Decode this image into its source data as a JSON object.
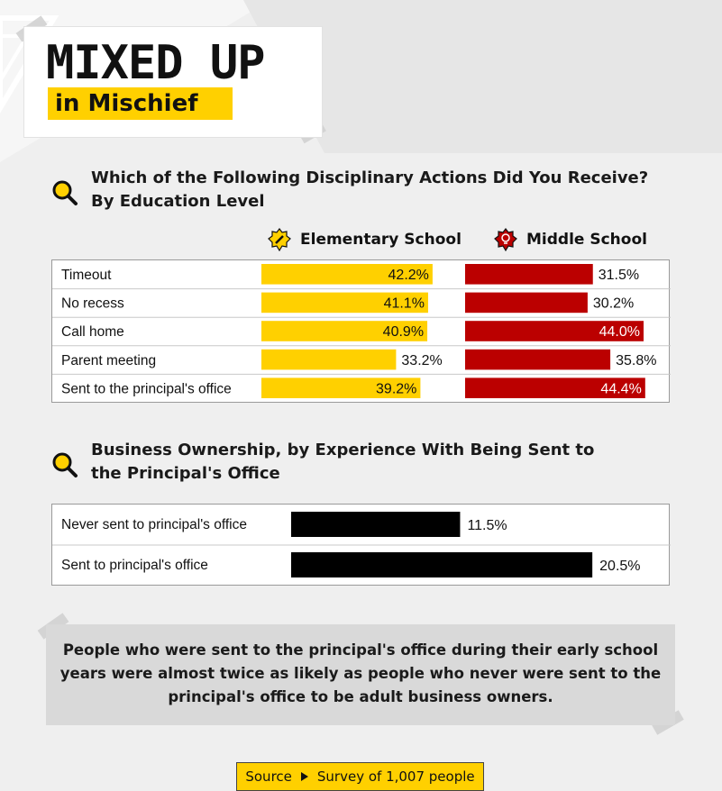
{
  "title": {
    "main": "MIXED UP",
    "sub": "in Mischief"
  },
  "section1": {
    "title_line1": "Which of the Following Disciplinary Actions Did You Receive?",
    "title_line2": "By Education Level",
    "legend": [
      {
        "label": "Elementary School",
        "icon": "pencil-badge-icon",
        "color": "#ffd000"
      },
      {
        "label": "Middle School",
        "icon": "lightbulb-badge-icon",
        "color": "#bb0000"
      }
    ]
  },
  "section2": {
    "title_line1": "Business Ownership, by Experience With Being Sent to",
    "title_line2": "the Principal's Office"
  },
  "callout": {
    "line1": "People who were sent to the principal's office during their early school",
    "line2_pre": "years were ",
    "line2_emph": "almost twice as likely",
    "line2_post": " as people who never were sent to the",
    "line3": "principal's office to be adult business owners."
  },
  "source": {
    "label": "Source",
    "text": "Survey of 1,007 people"
  },
  "chart_data": [
    {
      "type": "bar",
      "orientation": "horizontal",
      "categories": [
        "Timeout",
        "No recess",
        "Call home",
        "Parent meeting",
        "Sent to the principal's office"
      ],
      "series": [
        {
          "name": "Elementary School",
          "color": "#ffd000",
          "values": [
            42.2,
            41.1,
            40.9,
            33.2,
            39.2
          ],
          "labels": [
            "42.2%",
            "41.1%",
            "40.9%",
            "33.2%",
            "39.2%"
          ]
        },
        {
          "name": "Middle School",
          "color": "#bb0000",
          "values": [
            31.5,
            30.2,
            44.0,
            35.8,
            44.4
          ],
          "labels": [
            "31.5%",
            "30.2%",
            "44.0%",
            "35.8%",
            "44.4%"
          ]
        }
      ],
      "unit": "%"
    },
    {
      "type": "bar",
      "orientation": "horizontal",
      "categories": [
        "Never sent to principal's office",
        "Sent to principal's office"
      ],
      "series": [
        {
          "color": "#000000",
          "values": [
            11.5,
            20.5
          ],
          "labels": [
            "11.5%",
            "20.5%"
          ]
        }
      ],
      "unit": "%"
    }
  ]
}
